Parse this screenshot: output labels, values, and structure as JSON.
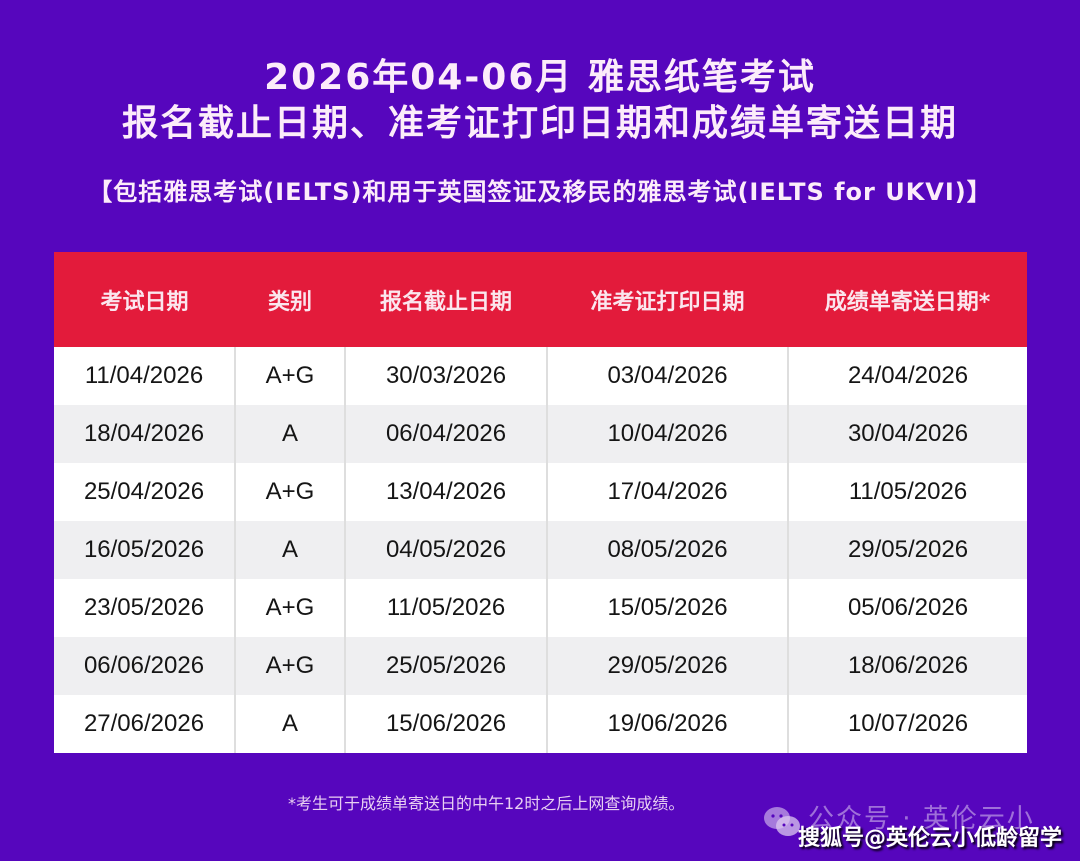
{
  "header": {
    "title_line1": "2026年04-06月 雅思纸笔考试",
    "title_line2": "报名截止日期、准考证打印日期和成绩单寄送日期",
    "subtitle": "【包括雅思考试(IELTS)和用于英国签证及移民的雅思考试(IELTS for UKVI)】"
  },
  "table": {
    "columns": [
      "考试日期",
      "类别",
      "报名截止日期",
      "准考证打印日期",
      "成绩单寄送日期*"
    ],
    "rows": [
      [
        "11/04/2026",
        "A+G",
        "30/03/2026",
        "03/04/2026",
        "24/04/2026"
      ],
      [
        "18/04/2026",
        "A",
        "06/04/2026",
        "10/04/2026",
        "30/04/2026"
      ],
      [
        "25/04/2026",
        "A+G",
        "13/04/2026",
        "17/04/2026",
        "11/05/2026"
      ],
      [
        "16/05/2026",
        "A",
        "04/05/2026",
        "08/05/2026",
        "29/05/2026"
      ],
      [
        "23/05/2026",
        "A+G",
        "11/05/2026",
        "15/05/2026",
        "05/06/2026"
      ],
      [
        "06/06/2026",
        "A+G",
        "25/05/2026",
        "29/05/2026",
        "18/06/2026"
      ],
      [
        "27/06/2026",
        "A",
        "15/06/2026",
        "19/06/2026",
        "10/07/2026"
      ]
    ]
  },
  "footnote": "*考生可于成绩单寄送日的中午12时之后上网查询成绩。",
  "watermark": {
    "wechat": "公众号 · 英伦云小",
    "sohu": "搜狐号@英伦云小低龄留学",
    "icon": "wechat-icon"
  },
  "colors": {
    "background": "#5606bd",
    "header_red": "#e31b3b",
    "row_alt": "#efeff1"
  }
}
